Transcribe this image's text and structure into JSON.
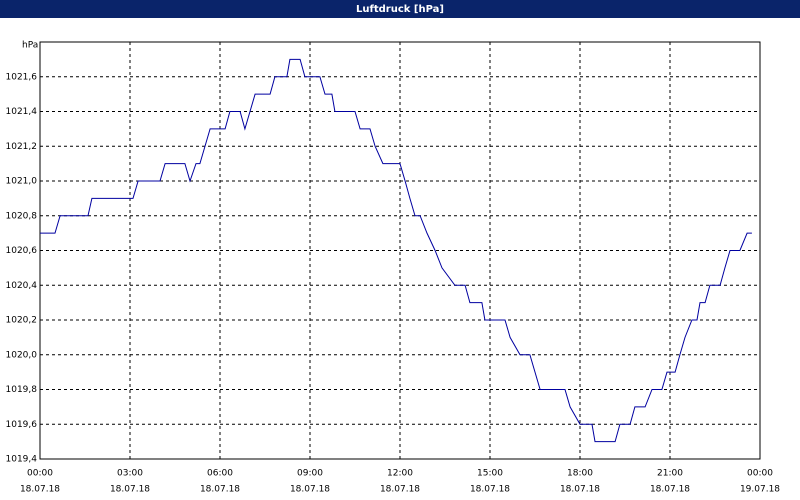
{
  "chart_data": {
    "type": "line",
    "title": "Luftdruck [hPa]",
    "ylabel": "hPa",
    "x": [
      0,
      0.5,
      0.67,
      1.6,
      1.73,
      3.1,
      3.27,
      4,
      4.17,
      4.83,
      5,
      5.2,
      5.33,
      5.5,
      5.67,
      6.17,
      6.33,
      6.67,
      6.83,
      7,
      7.17,
      7.67,
      7.83,
      8.23,
      8.33,
      8.67,
      8.83,
      9.33,
      9.5,
      9.73,
      9.83,
      10.5,
      10.67,
      11,
      11.17,
      11.43,
      12,
      12.17,
      12.33,
      12.5,
      12.67,
      12.9,
      13.17,
      13.4,
      13.83,
      14.17,
      14.33,
      14.73,
      14.83,
      15.5,
      15.67,
      16,
      16.33,
      16.67,
      17.5,
      17.67,
      18,
      18.4,
      18.5,
      19.17,
      19.33,
      19.67,
      19.83,
      20.17,
      20.4,
      20.73,
      20.9,
      21.17,
      21.33,
      21.5,
      21.73,
      21.9,
      22,
      22.17,
      22.33,
      22.67,
      22.83,
      23,
      23.33,
      23.57,
      23.73
    ],
    "values": [
      1020.7,
      1020.7,
      1020.8,
      1020.8,
      1020.9,
      1020.9,
      1021.0,
      1021.0,
      1021.1,
      1021.1,
      1021.0,
      1021.1,
      1021.1,
      1021.2,
      1021.3,
      1021.3,
      1021.4,
      1021.4,
      1021.3,
      1021.4,
      1021.5,
      1021.5,
      1021.6,
      1021.6,
      1021.7,
      1021.7,
      1021.6,
      1021.6,
      1021.5,
      1021.5,
      1021.4,
      1021.4,
      1021.3,
      1021.3,
      1021.2,
      1021.1,
      1021.1,
      1021.0,
      1020.9,
      1020.8,
      1020.8,
      1020.7,
      1020.6,
      1020.5,
      1020.4,
      1020.4,
      1020.3,
      1020.3,
      1020.2,
      1020.2,
      1020.1,
      1020.0,
      1020.0,
      1019.8,
      1019.8,
      1019.7,
      1019.6,
      1019.6,
      1019.5,
      1019.5,
      1019.6,
      1019.6,
      1019.7,
      1019.7,
      1019.8,
      1019.8,
      1019.9,
      1019.9,
      1020.0,
      1020.1,
      1020.2,
      1020.2,
      1020.3,
      1020.3,
      1020.4,
      1020.4,
      1020.5,
      1020.6,
      1020.6,
      1020.7,
      1020.7
    ],
    "color": "#0000a0",
    "xlim": [
      0,
      24
    ],
    "xticks": [
      {
        "value": 0,
        "label": "00:00"
      },
      {
        "value": 3,
        "label": "03:00"
      },
      {
        "value": 6,
        "label": "06:00"
      },
      {
        "value": 9,
        "label": "09:00"
      },
      {
        "value": 12,
        "label": "12:00"
      },
      {
        "value": 15,
        "label": "15:00"
      },
      {
        "value": 18,
        "label": "18:00"
      },
      {
        "value": 21,
        "label": "21:00"
      },
      {
        "value": 24,
        "label": "00:00"
      }
    ],
    "xtick_dates": [
      "18.07.18",
      "18.07.18",
      "18.07.18",
      "18.07.18",
      "18.07.18",
      "18.07.18",
      "18.07.18",
      "18.07.18",
      "19.07.18"
    ],
    "ylim": [
      1019.4,
      1021.8
    ],
    "yticks": [
      {
        "value": 1019.4,
        "label": "1019,4"
      },
      {
        "value": 1019.6,
        "label": "1019,6"
      },
      {
        "value": 1019.8,
        "label": "1019,8"
      },
      {
        "value": 1020.0,
        "label": "1020,0"
      },
      {
        "value": 1020.2,
        "label": "1020,2"
      },
      {
        "value": 1020.4,
        "label": "1020,4"
      },
      {
        "value": 1020.6,
        "label": "1020,6"
      },
      {
        "value": 1020.8,
        "label": "1020,8"
      },
      {
        "value": 1021.0,
        "label": "1021,0"
      },
      {
        "value": 1021.2,
        "label": "1021,2"
      },
      {
        "value": 1021.4,
        "label": "1021,4"
      },
      {
        "value": 1021.6,
        "label": "1021,6"
      }
    ],
    "grid": true
  }
}
